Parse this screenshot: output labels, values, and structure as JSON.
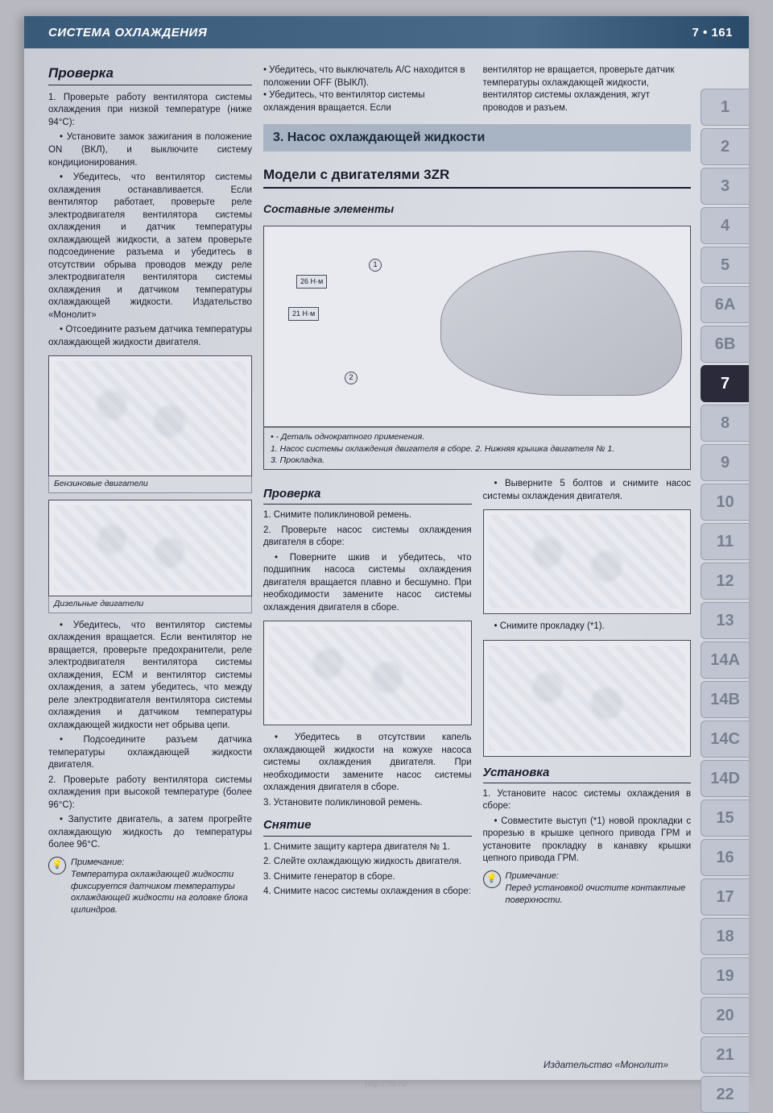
{
  "header": {
    "title": "СИСТЕМА ОХЛАЖДЕНИЯ",
    "chapter": "7",
    "page": "161"
  },
  "tabs": [
    "1",
    "2",
    "3",
    "4",
    "5",
    "6A",
    "6B",
    "7",
    "8",
    "9",
    "10",
    "11",
    "12",
    "13",
    "14A",
    "14B",
    "14C",
    "14D",
    "15",
    "16",
    "17",
    "18",
    "19",
    "20",
    "21",
    "22"
  ],
  "active_tab": "7",
  "col1": {
    "h2": "Проверка",
    "p1": "1. Проверьте работу вентилятора системы охлаждения при низкой температуре (ниже 94°C):",
    "p2": "• Установите замок зажигания в положение ON (ВКЛ), и выключите систему кондиционирования.",
    "p3": "• Убедитесь, что вентилятор системы охлаждения останавливается. Если вентилятор работает, проверьте реле электродвигателя вентилятора системы охлаждения и датчик температуры охлаждающей жидкости, а затем проверьте подсоединение разъема и убедитесь в отсутствии обрыва проводов между реле электродвигателя вентилятора системы охлаждения и датчиком температуры охлаждающей жидкости. Издательство «Монолит»",
    "p4": "• Отсоедините разъем датчика температуры охлаждающей жидкости двигателя.",
    "fig1_cap": "Бензиновые двигатели",
    "fig2_cap": "Дизельные двигатели",
    "p5": "• Убедитесь, что вентилятор системы охлаждения вращается. Если вентилятор не вращается, проверьте предохранители, реле электродвигателя вентилятора системы охлаждения, ECM и вентилятор системы охлаждения, а затем убедитесь, что между реле электродвигателя вентилятора системы охлаждения и датчиком температуры охлаждающей жидкости нет обрыва цепи.",
    "p6": "• Подсоедините разъем датчика температуры охлаждающей жидкости двигателя.",
    "p7": "2. Проверьте работу вентилятора системы охлаждения при высокой температуре (более 96°C):",
    "p8": "• Запустите двигатель, а затем прогрейте охлаждающую жидкость до температуры более 96°C.",
    "note_title": "Примечание:",
    "note_text": "Температура охлаждающей жидкости фиксируется датчиком температуры охлаждающей жидкости на головке блока цилиндров."
  },
  "col2": {
    "p1": "• Убедитесь, что выключатель A/C находится в положении OFF (ВЫКЛ).",
    "p2": "• Убедитесь, что вентилятор системы охлаждения вращается. Если",
    "section": "3. Насос охлаждающей жидкости",
    "subhead": "Модели с двигателями 3ZR",
    "subhead2": "Составные элементы",
    "fig_label1": "26 Н·м",
    "fig_label2": "21 Н·м",
    "fig_cap_line1": "• - Деталь однократного применения.",
    "fig_cap_line2": "1. Насос системы охлаждения двигателя в сборе. 2. Нижняя крышка двигателя № 1.",
    "fig_cap_line3": "3. Прокладка.",
    "h3a": "Проверка",
    "pp1": "1. Снимите поликлиновой ремень.",
    "pp2": "2. Проверьте насос системы охлаждения двигателя в сборе:",
    "pp3": "• Поверните шкив и убедитесь, что подшипник насоса системы охлаждения двигателя вращается плавно и бесшумно. При необходимости замените насос системы охлаждения двигателя в сборе.",
    "pp4": "• Убедитесь в отсутствии капель охлаждающей жидкости на кожухе насоса системы охлаждения двигателя. При необходимости замените насос системы охлаждения двигателя в сборе.",
    "pp5": "3. Установите поликлиновой ремень.",
    "h3b": "Снятие",
    "s1": "1. Снимите защиту картера двигателя № 1.",
    "s2": "2. Слейте охлаждающую жидкость двигателя.",
    "s3": "3. Снимите генератор в сборе.",
    "s4": "4. Снимите насос системы охлаждения в сборе:"
  },
  "col3": {
    "p1": "вентилятор не вращается, проверьте датчик температуры охлаждающей жидкости, вентилятор системы охлаждения, жгут проводов и разъем.",
    "q1": "• Выверните 5 болтов и снимите насос системы охлаждения двигателя.",
    "q2": "• Снимите прокладку (*1).",
    "h3": "Установка",
    "u1": "1. Установите насос системы охлаждения в сборе:",
    "u2": "• Совместите выступ (*1) новой прокладки с прорезью в крышке цепного привода ГРМ и установите прокладку в канавку крышки цепного привода ГРМ.",
    "note_title": "Примечание:",
    "note_text": "Перед установкой очистите контактные поверхности."
  },
  "footer": "Издательство «Монолит»",
  "watermark": "http://?m.ru/"
}
